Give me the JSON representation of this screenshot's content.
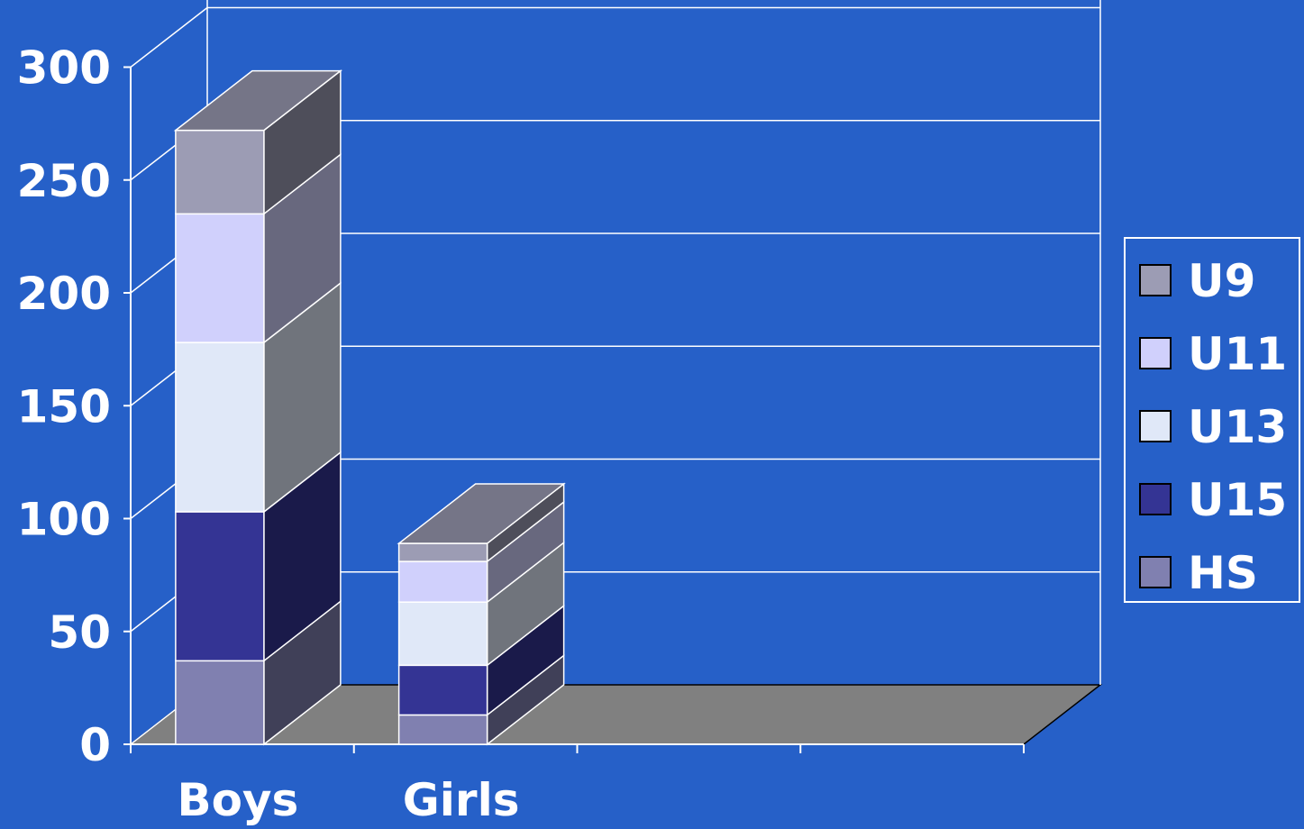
{
  "chart_data": {
    "type": "bar",
    "stacked": true,
    "three_d": true,
    "categories": [
      "Boys",
      "Girls"
    ],
    "series": [
      {
        "name": "HS",
        "values": [
          37,
          13
        ],
        "color": "#8080B0"
      },
      {
        "name": "U15",
        "values": [
          66,
          22
        ],
        "color": "#343494"
      },
      {
        "name": "U13",
        "values": [
          75,
          28
        ],
        "color": "#E0E8F8"
      },
      {
        "name": "U11",
        "values": [
          57,
          18
        ],
        "color": "#D0D0FC"
      },
      {
        "name": "U9",
        "values": [
          37,
          8
        ],
        "color": "#9C9CB4"
      }
    ],
    "y_ticks": [
      "0",
      "50",
      "100",
      "150",
      "200",
      "250",
      "300"
    ],
    "ylim": [
      0,
      300
    ],
    "grid": true,
    "legend_position": "right",
    "legend_order": [
      "U9",
      "U11",
      "U13",
      "U15",
      "HS"
    ],
    "colors": {
      "background": "#2660C8",
      "floor": "#808080",
      "gridline": "#FFFFFF",
      "text": "#FFFFFF"
    }
  }
}
